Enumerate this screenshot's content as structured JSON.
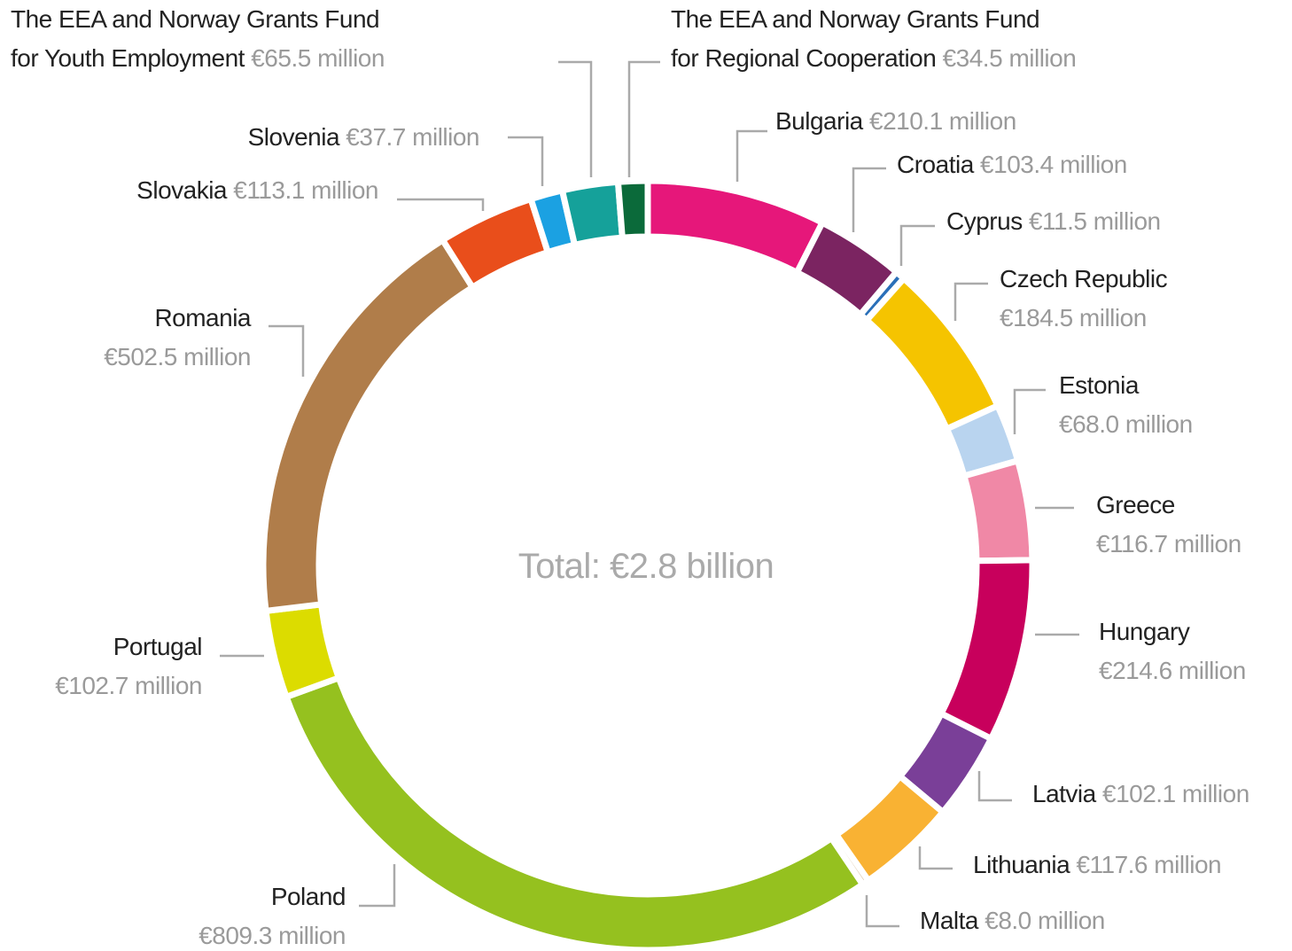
{
  "chart_data": {
    "type": "donut",
    "center_label": "Total: €2.8 billion",
    "categories": [
      "Bulgaria",
      "Croatia",
      "Cyprus",
      "Czech Republic",
      "Estonia",
      "Greece",
      "Hungary",
      "Latvia",
      "Lithuania",
      "Malta",
      "Poland",
      "Portugal",
      "Romania",
      "Slovakia",
      "Slovenia",
      "The EEA and Norway Grants Fund\nfor Youth Employment",
      "The EEA and Norway Grants Fund\nfor Regional Cooperation"
    ],
    "values": [
      210.1,
      103.4,
      11.5,
      184.5,
      68.0,
      116.7,
      214.6,
      102.1,
      117.6,
      8.0,
      809.3,
      102.7,
      502.5,
      113.1,
      37.7,
      65.5,
      34.5
    ],
    "value_labels": [
      "€210.1 million",
      "€103.4 million",
      "€11.5 million",
      "€184.5 million",
      "€68.0 million",
      "€116.7 million",
      "€214.6 million",
      "€102.1 million",
      "€117.6 million",
      "€8.0 million",
      "€809.3 million",
      "€102.7 million",
      "€502.5 million",
      "€113.1 million",
      "€37.7 million",
      "€65.5 million",
      "€34.5 million"
    ],
    "colors": [
      "#e6177a",
      "#7b2461",
      "#2a6fb8",
      "#f5c400",
      "#b9d4ef",
      "#f088a6",
      "#c8005c",
      "#7a3f98",
      "#f9b233",
      "#d9c3a5",
      "#95c11f",
      "#dcdc00",
      "#b07d4a",
      "#e94e1b",
      "#1ba1e2",
      "#15a19a",
      "#0b6a3a"
    ]
  }
}
